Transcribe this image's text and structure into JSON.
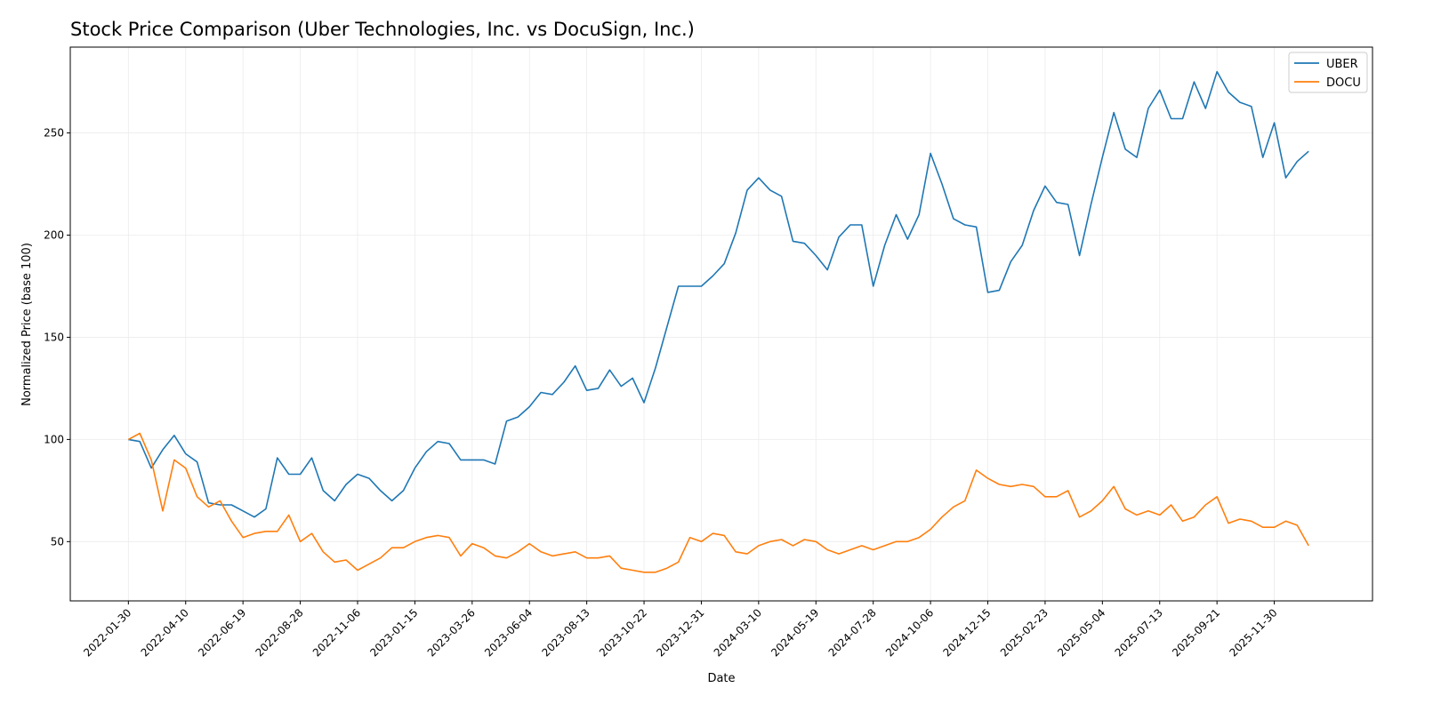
{
  "chart_data": {
    "type": "line",
    "title": "Stock Price Comparison (Uber Technologies, Inc. vs DocuSign, Inc.)",
    "xlabel": "Date",
    "ylabel": "Normalized Price (base 100)",
    "xlim": [
      "2021-11-20",
      "2026-03-30"
    ],
    "ylim": [
      21,
      292
    ],
    "grid": true,
    "legend_position": "top-right",
    "x_ticks": [
      "2022-01-30",
      "2022-04-10",
      "2022-06-19",
      "2022-08-28",
      "2022-11-06",
      "2023-01-15",
      "2023-03-26",
      "2023-06-04",
      "2023-08-13",
      "2023-10-22",
      "2023-12-31",
      "2024-03-10",
      "2024-05-19",
      "2024-07-28",
      "2024-10-06",
      "2024-12-15",
      "2025-02-23",
      "2025-05-04",
      "2025-07-13",
      "2025-09-21",
      "2025-11-30"
    ],
    "y_ticks": [
      50,
      100,
      150,
      200,
      250
    ],
    "x": [
      "2022-01-30",
      "2022-02-13",
      "2022-02-27",
      "2022-03-13",
      "2022-03-27",
      "2022-04-10",
      "2022-04-24",
      "2022-05-08",
      "2022-05-22",
      "2022-06-05",
      "2022-06-19",
      "2022-07-03",
      "2022-07-17",
      "2022-07-31",
      "2022-08-14",
      "2022-08-28",
      "2022-09-11",
      "2022-09-25",
      "2022-10-09",
      "2022-10-23",
      "2022-11-06",
      "2022-11-20",
      "2022-12-04",
      "2022-12-18",
      "2023-01-01",
      "2023-01-15",
      "2023-01-29",
      "2023-02-12",
      "2023-02-26",
      "2023-03-12",
      "2023-03-26",
      "2023-04-09",
      "2023-04-23",
      "2023-05-07",
      "2023-05-21",
      "2023-06-04",
      "2023-06-18",
      "2023-07-02",
      "2023-07-16",
      "2023-07-30",
      "2023-08-13",
      "2023-08-27",
      "2023-09-10",
      "2023-09-24",
      "2023-10-08",
      "2023-10-22",
      "2023-11-05",
      "2023-11-19",
      "2023-12-03",
      "2023-12-17",
      "2023-12-31",
      "2024-01-14",
      "2024-01-28",
      "2024-02-11",
      "2024-02-25",
      "2024-03-10",
      "2024-03-24",
      "2024-04-07",
      "2024-04-21",
      "2024-05-05",
      "2024-05-19",
      "2024-06-02",
      "2024-06-16",
      "2024-06-30",
      "2024-07-14",
      "2024-07-28",
      "2024-08-11",
      "2024-08-25",
      "2024-09-08",
      "2024-09-22",
      "2024-10-06",
      "2024-10-20",
      "2024-11-03",
      "2024-11-17",
      "2024-12-01",
      "2024-12-15",
      "2024-12-29",
      "2025-01-12",
      "2025-01-26",
      "2025-02-09",
      "2025-02-23",
      "2025-03-09",
      "2025-03-23",
      "2025-04-06",
      "2025-04-20",
      "2025-05-04",
      "2025-05-18",
      "2025-06-01",
      "2025-06-15",
      "2025-06-29",
      "2025-07-13",
      "2025-07-27",
      "2025-08-10",
      "2025-08-24",
      "2025-09-07",
      "2025-09-21",
      "2025-10-05",
      "2025-10-19",
      "2025-11-02",
      "2025-11-16",
      "2025-11-30",
      "2025-12-14",
      "2025-12-28",
      "2026-01-11"
    ],
    "series": [
      {
        "name": "UBER",
        "color": "#1f77b4",
        "values": [
          100,
          99,
          86,
          95,
          102,
          93,
          89,
          69,
          68,
          68,
          65,
          62,
          66,
          91,
          83,
          83,
          91,
          75,
          70,
          78,
          83,
          81,
          75,
          70,
          75,
          86,
          94,
          99,
          98,
          90,
          90,
          90,
          88,
          109,
          111,
          116,
          123,
          122,
          128,
          136,
          124,
          125,
          134,
          126,
          130,
          118,
          135,
          155,
          175,
          175,
          175,
          180,
          186,
          201,
          222,
          228,
          222,
          219,
          197,
          196,
          190,
          183,
          199,
          205,
          205,
          175,
          195,
          210,
          198,
          210,
          240,
          225,
          208,
          205,
          204,
          172,
          173,
          187,
          195,
          212,
          224,
          216,
          215,
          190,
          215,
          238,
          260,
          242,
          238,
          262,
          271,
          257,
          257,
          275,
          262,
          280,
          270,
          265,
          263,
          238,
          255,
          228,
          236,
          241
        ]
      },
      {
        "name": "DOCU",
        "color": "#ff7f0e",
        "values": [
          100,
          103,
          90,
          65,
          90,
          86,
          72,
          67,
          70,
          60,
          52,
          54,
          55,
          55,
          63,
          50,
          54,
          45,
          40,
          41,
          36,
          39,
          42,
          47,
          47,
          50,
          52,
          53,
          52,
          43,
          49,
          47,
          43,
          42,
          45,
          49,
          45,
          43,
          44,
          45,
          42,
          42,
          43,
          37,
          36,
          35,
          35,
          37,
          40,
          52,
          50,
          54,
          53,
          45,
          44,
          48,
          50,
          51,
          48,
          51,
          50,
          46,
          44,
          46,
          48,
          46,
          48,
          50,
          50,
          52,
          56,
          62,
          67,
          70,
          85,
          81,
          78,
          77,
          78,
          77,
          72,
          72,
          75,
          62,
          65,
          70,
          77,
          66,
          63,
          65,
          63,
          68,
          60,
          62,
          68,
          72,
          59,
          61,
          60,
          57,
          57,
          60,
          58,
          48
        ]
      }
    ]
  }
}
